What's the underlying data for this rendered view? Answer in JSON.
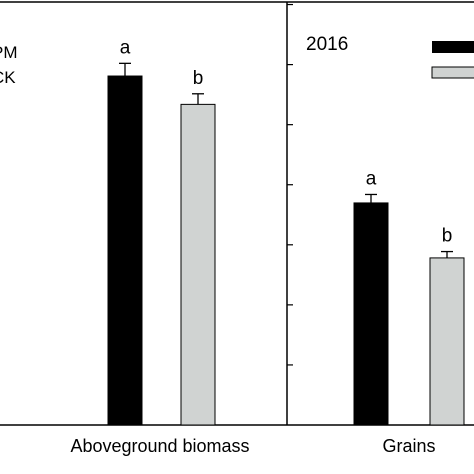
{
  "chart_data": [
    {
      "type": "bar",
      "title": "",
      "xlabel": "",
      "ylabel": "",
      "ylim": [
        0,
        100
      ],
      "categories": [
        "Aboveground biomass"
      ],
      "series": [
        {
          "name": "PM",
          "color": "#000000",
          "values": [
            82.5
          ],
          "errors": [
            3
          ],
          "letters": [
            "a"
          ]
        },
        {
          "name": "CK",
          "color": "#d0d3d2",
          "values": [
            75.8
          ],
          "errors": [
            2.5
          ],
          "letters": [
            "b"
          ]
        }
      ],
      "legend": {
        "placement": "top-left",
        "entries": [
          "PM",
          "CK"
        ]
      }
    },
    {
      "type": "bar",
      "title": "2016",
      "xlabel": "",
      "ylabel": "",
      "ylim": [
        0,
        100
      ],
      "categories": [
        "Grains"
      ],
      "series": [
        {
          "name": "",
          "color": "#000000",
          "values": [
            52.5
          ],
          "errors": [
            2
          ],
          "letters": [
            "a"
          ]
        },
        {
          "name": "",
          "color": "#d0d3d2",
          "values": [
            39.5
          ],
          "errors": [
            1.5
          ],
          "letters": [
            "b"
          ]
        }
      ],
      "legend": {
        "placement": "top-right"
      }
    }
  ]
}
